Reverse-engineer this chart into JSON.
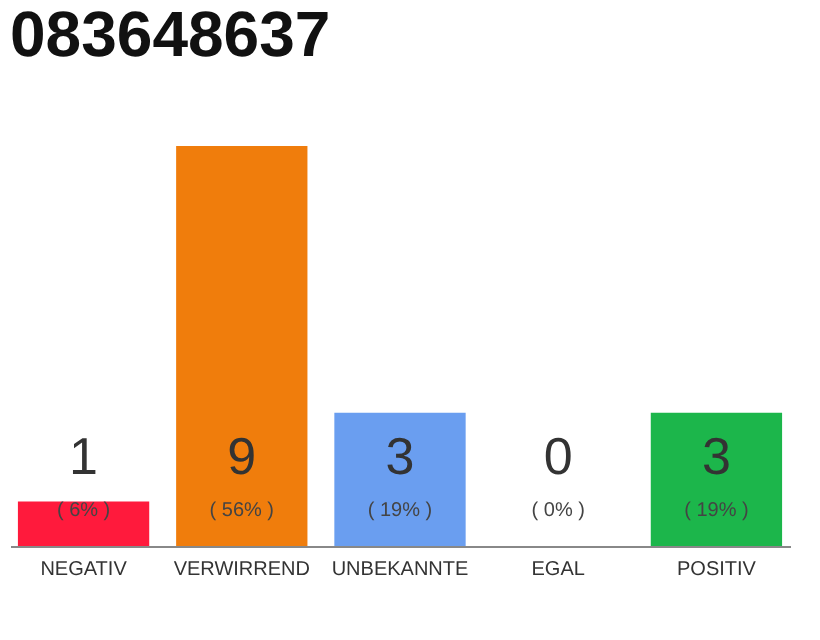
{
  "chart_data": {
    "type": "bar",
    "title": "083648637",
    "categories": [
      "NEGATIV",
      "VERWIRREND",
      "UNBEKANNTE",
      "EGAL",
      "POSITIV"
    ],
    "values": [
      1,
      9,
      3,
      0,
      3
    ],
    "colors": [
      "#ff1a3c",
      "#f07d0c",
      "#6a9ef0",
      "#bbbbbb",
      "#1cb64b"
    ],
    "tick_labels": "x",
    "grid": false,
    "data_labels": true,
    "annotations": [
      "( 6% )",
      "( 56% )",
      "( 19% )",
      "( 0% )",
      "( 19% )"
    ]
  }
}
